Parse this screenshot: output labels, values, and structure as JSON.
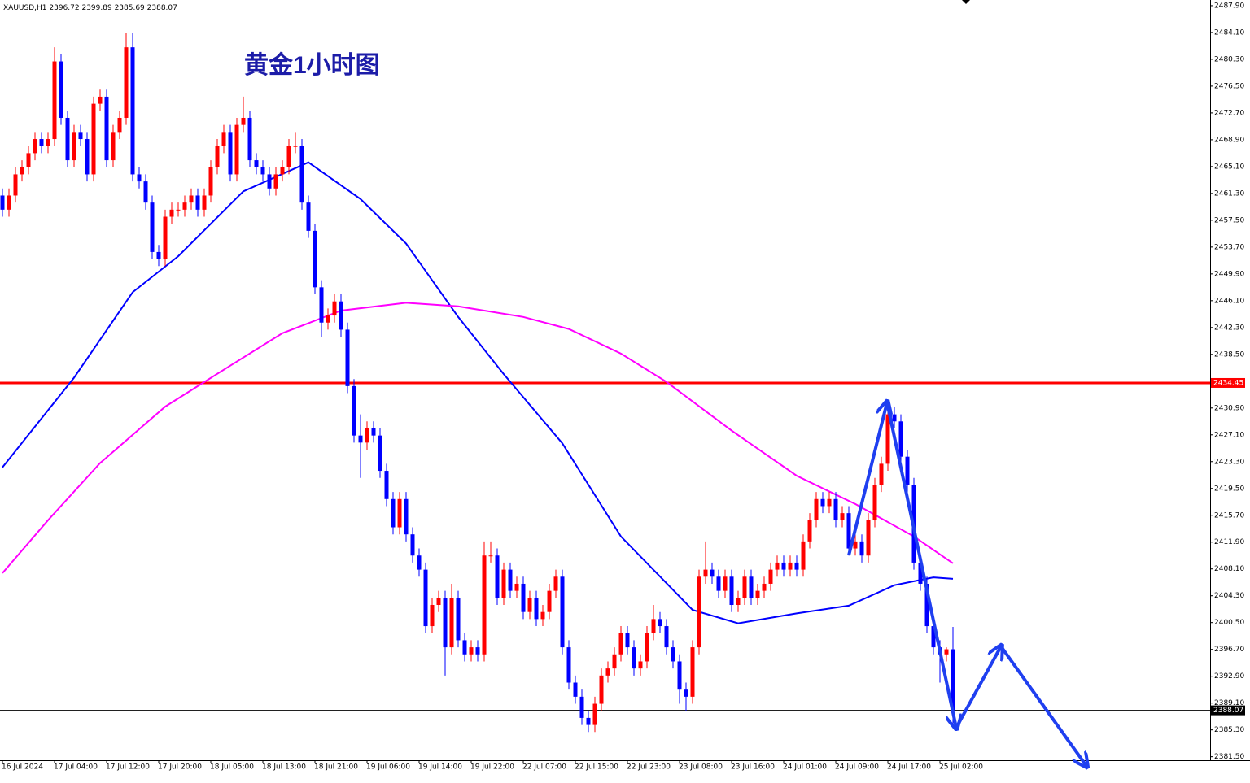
{
  "chart_data": {
    "type": "candlestick",
    "symbol": "XAUUSD,H1",
    "title": "黄金1小时图",
    "ylim": [
      2381.0,
      2488.7
    ],
    "yticks": [
      {
        "value": 2487.9,
        "label": "2487.90"
      },
      {
        "value": 2484.1,
        "label": "2484.10"
      },
      {
        "value": 2480.3,
        "label": "2480.30"
      },
      {
        "value": 2476.5,
        "label": "2476.50"
      },
      {
        "value": 2472.7,
        "label": "2472.70"
      },
      {
        "value": 2468.9,
        "label": "2468.90"
      },
      {
        "value": 2465.1,
        "label": "2465.10"
      },
      {
        "value": 2461.3,
        "label": "2461.30"
      },
      {
        "value": 2457.5,
        "label": "2457.50"
      },
      {
        "value": 2453.7,
        "label": "2453.70"
      },
      {
        "value": 2449.9,
        "label": "2449.90"
      },
      {
        "value": 2446.1,
        "label": "2446.10"
      },
      {
        "value": 2442.3,
        "label": "2442.30"
      },
      {
        "value": 2438.5,
        "label": "2438.50"
      },
      {
        "value": 2430.9,
        "label": "2430.90"
      },
      {
        "value": 2427.1,
        "label": "2427.10"
      },
      {
        "value": 2423.3,
        "label": "2423.30"
      },
      {
        "value": 2419.5,
        "label": "2419.50"
      },
      {
        "value": 2415.7,
        "label": "2415.70"
      },
      {
        "value": 2411.9,
        "label": "2411.90"
      },
      {
        "value": 2408.1,
        "label": "2408.10"
      },
      {
        "value": 2404.3,
        "label": "2404.30"
      },
      {
        "value": 2400.5,
        "label": "2400.50"
      },
      {
        "value": 2396.7,
        "label": "2396.70"
      },
      {
        "value": 2392.9,
        "label": "2392.90"
      },
      {
        "value": 2389.1,
        "label": "2389.10"
      },
      {
        "value": 2385.3,
        "label": "2385.30"
      },
      {
        "value": 2381.5,
        "label": "2381.50"
      }
    ],
    "xticks": [
      {
        "value": 0,
        "label": "16 Jul 2024"
      },
      {
        "value": 8,
        "label": "17 Jul 04:00"
      },
      {
        "value": 16,
        "label": "17 Jul 12:00"
      },
      {
        "value": 24,
        "label": "17 Jul 20:00"
      },
      {
        "value": 32,
        "label": "18 Jul 05:00"
      },
      {
        "value": 40,
        "label": "18 Jul 13:00"
      },
      {
        "value": 48,
        "label": "18 Jul 21:00"
      },
      {
        "value": 56,
        "label": "19 Jul 06:00"
      },
      {
        "value": 64,
        "label": "19 Jul 14:00"
      },
      {
        "value": 72,
        "label": "19 Jul 22:00"
      },
      {
        "value": 80,
        "label": "22 Jul 07:00"
      },
      {
        "value": 88,
        "label": "22 Jul 15:00"
      },
      {
        "value": 96,
        "label": "22 Jul 23:00"
      },
      {
        "value": 104,
        "label": "23 Jul 08:00"
      },
      {
        "value": 112,
        "label": "23 Jul 16:00"
      },
      {
        "value": 120,
        "label": "24 Jul 01:00"
      },
      {
        "value": 128,
        "label": "24 Jul 09:00"
      },
      {
        "value": 136,
        "label": "24 Jul 17:00"
      },
      {
        "value": 144,
        "label": "25 Jul 02:00"
      }
    ],
    "up_color": "#ff0000",
    "down_color": "#0000ff",
    "open": [
      2461,
      2459,
      2461,
      2464,
      2465,
      2467,
      2469,
      2468,
      2469,
      2480,
      2472,
      2466,
      2470,
      2469,
      2464,
      2474,
      2475,
      2466,
      2470,
      2472,
      2482,
      2464,
      2463,
      2460,
      2453,
      2452,
      2458,
      2459,
      2459,
      2460,
      2461,
      2459,
      2461,
      2465,
      2468,
      2470,
      2464,
      2471,
      2472,
      2466,
      2465,
      2464,
      2462,
      2464,
      2465,
      2468,
      2468,
      2460,
      2456,
      2448,
      2443,
      2444,
      2446,
      2442,
      2434,
      2427,
      2426,
      2428,
      2427,
      2422,
      2418,
      2414,
      2418,
      2413,
      2410,
      2408,
      2400,
      2403,
      2404,
      2397,
      2404,
      2398,
      2396,
      2397,
      2396,
      2410,
      2410,
      2404,
      2408,
      2405,
      2406,
      2402,
      2404,
      2401,
      2402,
      2405,
      2407,
      2397,
      2392,
      2390,
      2387,
      2386,
      2389,
      2393,
      2394,
      2396,
      2399,
      2397,
      2394,
      2395,
      2399,
      2401,
      2400,
      2397,
      2395,
      2391,
      2390,
      2397,
      2407,
      2408,
      2407,
      2405,
      2407,
      2403,
      2404,
      2407,
      2404,
      2405,
      2406,
      2408,
      2409,
      2408,
      2409,
      2408,
      2412,
      2415,
      2418,
      2417,
      2418,
      2415,
      2416,
      2411,
      2412,
      2410,
      2415,
      2420,
      2423,
      2430,
      2429,
      2424,
      2420,
      2409,
      2406,
      2400,
      2397,
      2396,
      2396.72
    ],
    "high": [
      2462,
      2462,
      2465,
      2466,
      2468,
      2470,
      2470,
      2470,
      2482,
      2481,
      2473,
      2471,
      2471,
      2470,
      2475,
      2476,
      2476,
      2471,
      2473,
      2484,
      2484,
      2465,
      2464,
      2461,
      2454,
      2459,
      2460,
      2460,
      2461,
      2462,
      2462,
      2462,
      2466,
      2469,
      2471,
      2471,
      2472,
      2475,
      2473,
      2467,
      2466,
      2465,
      2465,
      2466,
      2469,
      2470,
      2469,
      2461,
      2457,
      2449,
      2445,
      2447,
      2447,
      2443,
      2435,
      2430,
      2429,
      2429,
      2428,
      2423,
      2419,
      2419,
      2419,
      2414,
      2411,
      2409,
      2404,
      2405,
      2405,
      2406,
      2405,
      2399,
      2398,
      2398,
      2412,
      2412,
      2411,
      2409,
      2409,
      2407,
      2407,
      2405,
      2405,
      2403,
      2406,
      2408,
      2408,
      2398,
      2393,
      2391,
      2388,
      2390,
      2394,
      2395,
      2397,
      2400,
      2400,
      2398,
      2396,
      2400,
      2403,
      2402,
      2401,
      2398,
      2396,
      2392,
      2398,
      2408,
      2412,
      2409,
      2408,
      2408,
      2408,
      2405,
      2408,
      2408,
      2406,
      2407,
      2409,
      2410,
      2410,
      2410,
      2410,
      2413,
      2416,
      2419,
      2419,
      2419,
      2419,
      2417,
      2417,
      2413,
      2413,
      2416,
      2421,
      2424,
      2431,
      2431,
      2430,
      2425,
      2421,
      2410,
      2407,
      2401,
      2398,
      2397,
      2399.89
    ],
    "low": [
      2458,
      2458,
      2460,
      2463,
      2464,
      2466,
      2467,
      2467,
      2468,
      2471,
      2465,
      2465,
      2468,
      2463,
      2463,
      2473,
      2465,
      2465,
      2469,
      2471,
      2463,
      2462,
      2459,
      2452,
      2451,
      2451,
      2457,
      2458,
      2458,
      2459,
      2458,
      2458,
      2460,
      2464,
      2467,
      2463,
      2463,
      2470,
      2465,
      2464,
      2463,
      2461,
      2461,
      2463,
      2464,
      2467,
      2459,
      2455,
      2447,
      2441,
      2442,
      2443,
      2441,
      2433,
      2426,
      2421,
      2425,
      2426,
      2421,
      2417,
      2413,
      2413,
      2412,
      2409,
      2407,
      2399,
      2399,
      2402,
      2393,
      2396,
      2397,
      2395,
      2395,
      2395,
      2395,
      2409,
      2403,
      2403,
      2404,
      2404,
      2401,
      2401,
      2400,
      2400,
      2401,
      2404,
      2396,
      2391,
      2389,
      2386,
      2385,
      2385,
      2388,
      2392,
      2393,
      2395,
      2396,
      2393,
      2393,
      2394,
      2398,
      2399,
      2396,
      2394,
      2389,
      2388,
      2389,
      2396,
      2406,
      2406,
      2404,
      2404,
      2402,
      2402,
      2403,
      2403,
      2403,
      2404,
      2405,
      2407,
      2407,
      2407,
      2407,
      2407,
      2411,
      2414,
      2416,
      2416,
      2414,
      2414,
      2410,
      2410,
      2409,
      2409,
      2414,
      2419,
      2422,
      2428,
      2423,
      2419,
      2408,
      2405,
      2399,
      2396,
      2392,
      2395,
      2385.69
    ],
    "close": [
      2459,
      2461,
      2464,
      2465,
      2467,
      2469,
      2468,
      2469,
      2480,
      2472,
      2466,
      2470,
      2469,
      2464,
      2474,
      2475,
      2466,
      2470,
      2472,
      2482,
      2464,
      2463,
      2460,
      2453,
      2452,
      2458,
      2459,
      2459,
      2460,
      2461,
      2459,
      2461,
      2465,
      2468,
      2470,
      2464,
      2471,
      2472,
      2466,
      2465,
      2464,
      2462,
      2464,
      2465,
      2468,
      2468,
      2460,
      2456,
      2448,
      2443,
      2444,
      2446,
      2442,
      2434,
      2427,
      2426,
      2428,
      2427,
      2422,
      2418,
      2414,
      2418,
      2413,
      2410,
      2408,
      2400,
      2403,
      2404,
      2397,
      2404,
      2398,
      2396,
      2397,
      2396,
      2410,
      2410,
      2404,
      2408,
      2405,
      2406,
      2402,
      2404,
      2401,
      2402,
      2405,
      2407,
      2397,
      2392,
      2390,
      2387,
      2386,
      2389,
      2393,
      2394,
      2396,
      2399,
      2397,
      2394,
      2395,
      2399,
      2401,
      2400,
      2397,
      2395,
      2391,
      2390,
      2397,
      2407,
      2408,
      2407,
      2405,
      2407,
      2403,
      2404,
      2407,
      2404,
      2405,
      2406,
      2408,
      2409,
      2408,
      2409,
      2408,
      2412,
      2415,
      2418,
      2417,
      2418,
      2415,
      2416,
      2411,
      2412,
      2410,
      2415,
      2420,
      2423,
      2430,
      2429,
      2424,
      2420,
      2409,
      2406,
      2400,
      2397,
      2396,
      2396.72,
      2388.07
    ],
    "lines": [
      {
        "color": "#0000ff",
        "x": [
          0,
          11,
          20,
          27,
          37,
          47,
          55,
          62,
          70,
          77,
          86,
          95,
          106,
          113,
          122,
          130,
          137,
          143,
          146
        ],
        "values": [
          2422.5,
          2435.2,
          2447.3,
          2452.4,
          2461.6,
          2465.7,
          2460.5,
          2454.2,
          2443.8,
          2435.7,
          2425.9,
          2412.7,
          2402.3,
          2400.4,
          2401.8,
          2402.9,
          2405.8,
          2406.9,
          2406.7
        ]
      },
      {
        "color": "#ff00ff",
        "x": [
          0,
          7,
          15,
          25,
          35,
          43,
          52,
          62,
          70,
          80,
          87,
          95,
          102,
          112,
          122,
          131,
          140,
          146
        ],
        "values": [
          2407.5,
          2415.0,
          2423.1,
          2431.1,
          2436.9,
          2441.5,
          2444.7,
          2445.8,
          2445.3,
          2443.8,
          2442.1,
          2438.6,
          2434.6,
          2427.7,
          2421.3,
          2417.3,
          2412.7,
          2408.9
        ]
      }
    ],
    "hlines": [
      {
        "value": 2434.45,
        "color": "#ff0000",
        "width": 3
      },
      {
        "value": 2388.07,
        "color": "#000000",
        "width": 1
      }
    ]
  }
}
